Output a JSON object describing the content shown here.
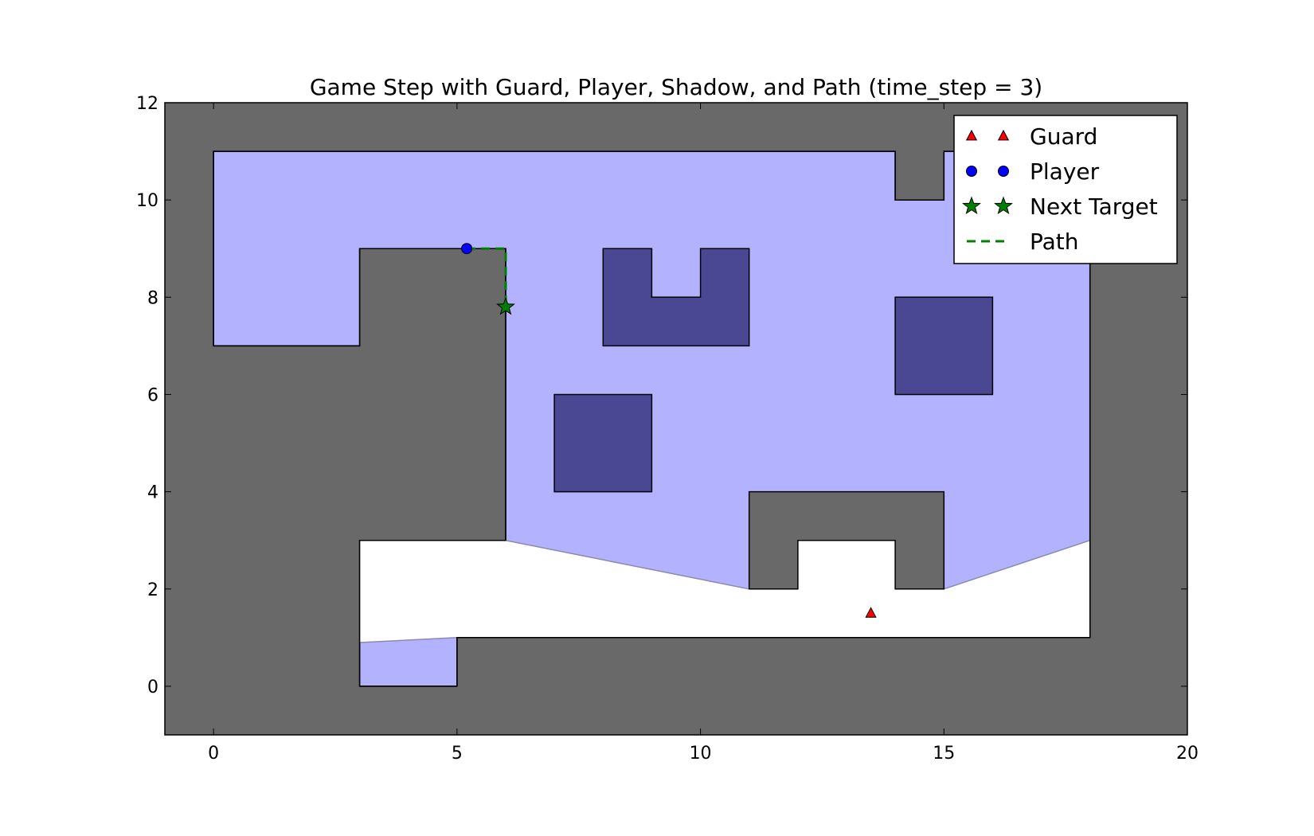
{
  "chart_data": {
    "type": "scatter",
    "title": "Game Step with Guard, Player, Shadow, and Path (time_step = 3)",
    "xlim": [
      -1,
      20
    ],
    "ylim": [
      -1,
      12
    ],
    "x_ticks": [
      0,
      5,
      10,
      15,
      20
    ],
    "y_ticks": [
      0,
      2,
      4,
      6,
      8,
      10,
      12
    ],
    "x_tick_labels": [
      "0",
      "5",
      "10",
      "15",
      "20"
    ],
    "y_tick_labels": [
      "0",
      "2",
      "4",
      "6",
      "8",
      "10",
      "12"
    ],
    "grid": false,
    "legend_position": "top-right",
    "colors": {
      "background_wall": "#696969",
      "free_space": "#ffffff",
      "visible_area": "#b2b2ff",
      "obstacle": "#4a4893",
      "guard": "#ff0000",
      "player": "#0000ff",
      "target": "#008000",
      "path": "#008000"
    },
    "map_outline": [
      [
        0,
        11
      ],
      [
        14,
        11
      ],
      [
        14,
        10
      ],
      [
        15,
        10
      ],
      [
        15,
        11
      ],
      [
        18,
        11
      ],
      [
        18,
        1
      ],
      [
        5,
        1
      ],
      [
        5,
        0
      ],
      [
        3,
        0
      ],
      [
        3,
        3
      ],
      [
        6,
        3
      ],
      [
        6,
        9
      ],
      [
        3,
        9
      ],
      [
        3,
        7
      ],
      [
        0,
        7
      ]
    ],
    "inner_wall": [
      [
        11,
        2
      ],
      [
        12,
        2
      ],
      [
        12,
        3
      ],
      [
        14,
        3
      ],
      [
        14,
        2
      ],
      [
        15,
        2
      ],
      [
        15,
        4
      ],
      [
        11,
        4
      ]
    ],
    "obstacles": [
      [
        [
          7,
          4
        ],
        [
          9,
          4
        ],
        [
          9,
          6
        ],
        [
          7,
          6
        ]
      ],
      [
        [
          14,
          6
        ],
        [
          16,
          6
        ],
        [
          16,
          8
        ],
        [
          14,
          8
        ]
      ],
      [
        [
          8,
          7
        ],
        [
          11,
          7
        ],
        [
          11,
          9
        ],
        [
          10,
          9
        ],
        [
          10,
          8
        ],
        [
          9,
          8
        ],
        [
          9,
          9
        ],
        [
          8,
          9
        ]
      ]
    ],
    "shadow_regions": [
      [
        [
          3,
          0.9
        ],
        [
          5,
          1
        ],
        [
          18,
          1
        ],
        [
          18,
          3
        ],
        [
          15,
          2
        ],
        [
          14,
          2
        ],
        [
          14,
          3
        ],
        [
          12,
          3
        ],
        [
          12,
          2
        ],
        [
          11,
          2
        ],
        [
          6,
          3
        ],
        [
          3,
          3
        ]
      ]
    ],
    "series": [
      {
        "name": "Guard",
        "marker": "triangle",
        "color": "#ff0000",
        "points": [
          [
            13.5,
            1.5
          ]
        ]
      },
      {
        "name": "Player",
        "marker": "circle",
        "color": "#0000ff",
        "points": [
          [
            5.2,
            9.0
          ]
        ]
      },
      {
        "name": "Next Target",
        "marker": "star",
        "color": "#008000",
        "points": [
          [
            6.0,
            7.8
          ]
        ]
      },
      {
        "name": "Path",
        "marker": "dashed-line",
        "color": "#008000",
        "points": [
          [
            5.2,
            9.0
          ],
          [
            6.0,
            9.0
          ],
          [
            6.0,
            7.8
          ]
        ]
      }
    ],
    "legend": {
      "entries": [
        {
          "label": "Guard",
          "marker": "triangle",
          "color": "#ff0000"
        },
        {
          "label": "Player",
          "marker": "circle",
          "color": "#0000ff"
        },
        {
          "label": "Next Target",
          "marker": "star",
          "color": "#008000"
        },
        {
          "label": "Path",
          "marker": "dashed-line",
          "color": "#008000"
        }
      ]
    }
  }
}
